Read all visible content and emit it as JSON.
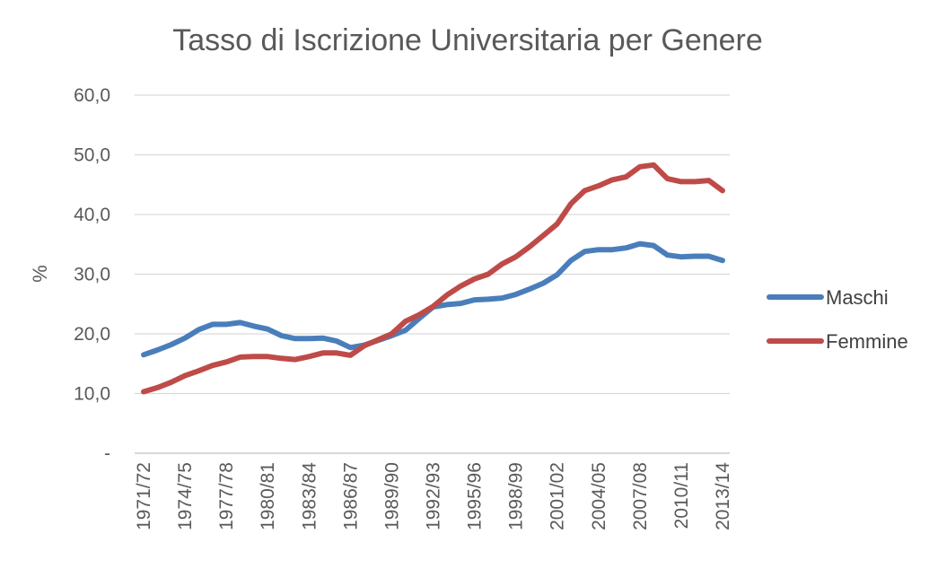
{
  "chart_data": {
    "type": "line",
    "title": "Tasso di Iscrizione Universitaria per Genere",
    "xlabel": "",
    "ylabel": "%",
    "ylim": [
      0,
      60
    ],
    "yticks": [
      {
        "value": 0,
        "label": "-"
      },
      {
        "value": 10,
        "label": "10,0"
      },
      {
        "value": 20,
        "label": "20,0"
      },
      {
        "value": 30,
        "label": "30,0"
      },
      {
        "value": 40,
        "label": "40,0"
      },
      {
        "value": 50,
        "label": "50,0"
      },
      {
        "value": 60,
        "label": "60,0"
      }
    ],
    "grid": true,
    "legend_position": "right",
    "x": [
      "1971/72",
      "1972/73",
      "1973/74",
      "1974/75",
      "1975/76",
      "1976/77",
      "1977/78",
      "1978/79",
      "1979/80",
      "1980/81",
      "1981/82",
      "1982/83",
      "1983/84",
      "1984/85",
      "1985/86",
      "1986/87",
      "1987/88",
      "1988/89",
      "1989/90",
      "1990/91",
      "1991/92",
      "1992/93",
      "1993/94",
      "1994/95",
      "1995/96",
      "1996/97",
      "1997/98",
      "1998/99",
      "1999/00",
      "2000/01",
      "2001/02",
      "2002/03",
      "2003/04",
      "2004/05",
      "2005/06",
      "2006/07",
      "2007/08",
      "2008/09",
      "2009/10",
      "2010/11",
      "2011/12",
      "2012/13",
      "2013/14"
    ],
    "xtick_labels": [
      "1971/72",
      "1974/75",
      "1977/78",
      "1980/81",
      "1983/84",
      "1986/87",
      "1989/90",
      "1992/93",
      "1995/96",
      "1998/99",
      "2001/02",
      "2004/05",
      "2007/08",
      "2010/11",
      "2013/14"
    ],
    "series": [
      {
        "name": "Maschi",
        "color": "#4a7ebb",
        "values": [
          16.5,
          17.3,
          18.2,
          19.3,
          20.7,
          21.6,
          21.6,
          21.9,
          21.3,
          20.8,
          19.7,
          19.2,
          19.2,
          19.3,
          18.8,
          17.7,
          18.1,
          18.9,
          19.7,
          20.6,
          22.6,
          24.5,
          24.9,
          25.1,
          25.7,
          25.8,
          26.0,
          26.6,
          27.5,
          28.5,
          29.9,
          32.3,
          33.8,
          34.1,
          34.1,
          34.4,
          35.1,
          34.8,
          33.2,
          32.9,
          33.0,
          33.0,
          32.3
        ]
      },
      {
        "name": "Femmine",
        "color": "#be4b48",
        "values": [
          10.3,
          11.0,
          11.9,
          13.0,
          13.8,
          14.7,
          15.3,
          16.1,
          16.2,
          16.2,
          15.9,
          15.7,
          16.2,
          16.8,
          16.8,
          16.4,
          18.0,
          19.0,
          20.0,
          22.1,
          23.2,
          24.6,
          26.5,
          28.0,
          29.2,
          30.0,
          31.7,
          32.9,
          34.6,
          36.5,
          38.4,
          41.8,
          44.0,
          44.8,
          45.8,
          46.3,
          48.0,
          48.3,
          46.0,
          45.5,
          45.5,
          45.7,
          44.0
        ]
      }
    ]
  }
}
